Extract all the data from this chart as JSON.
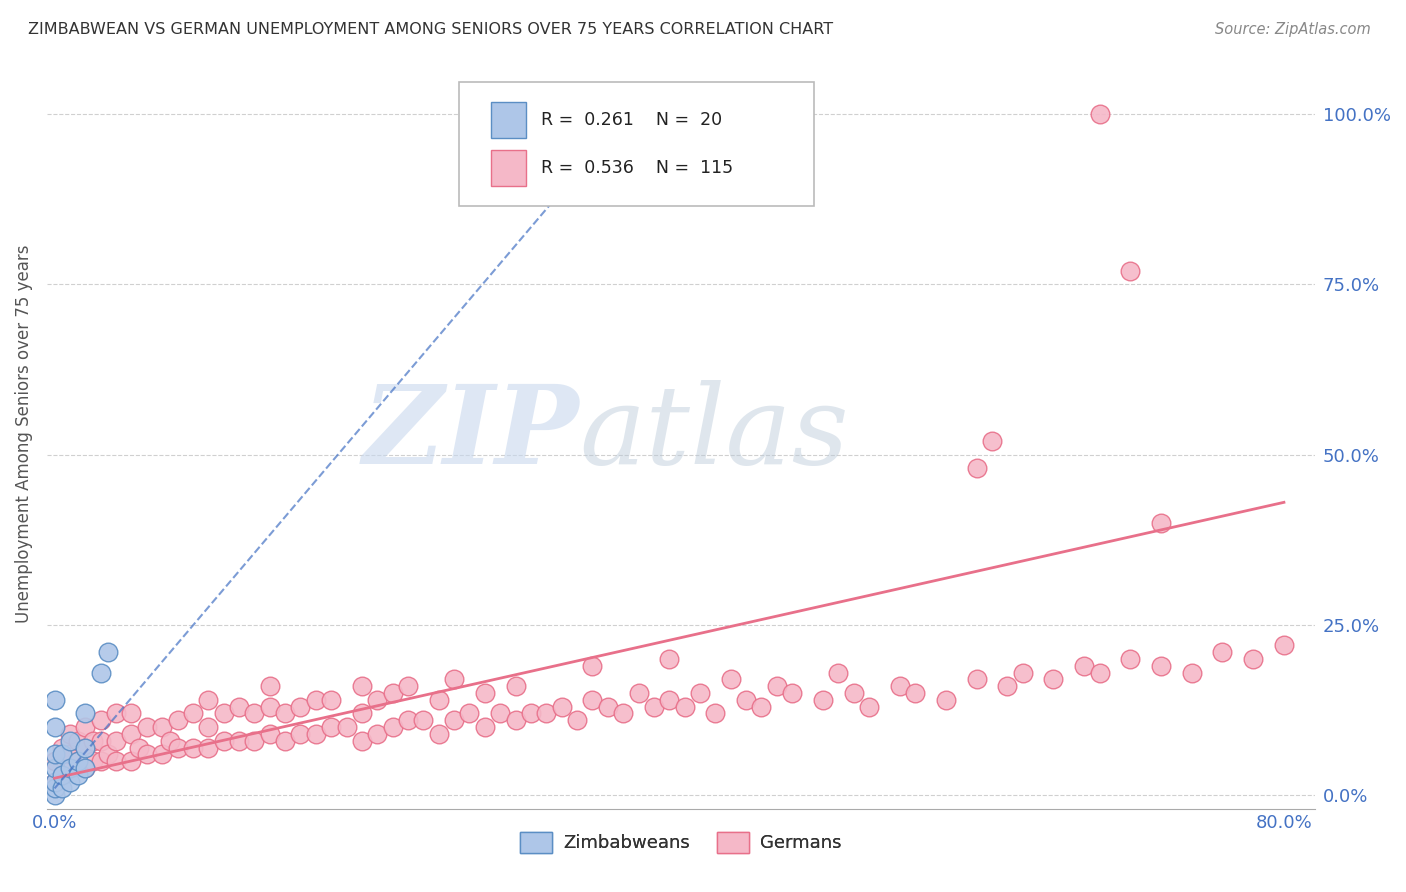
{
  "title": "ZIMBABWEAN VS GERMAN UNEMPLOYMENT AMONG SENIORS OVER 75 YEARS CORRELATION CHART",
  "source": "Source: ZipAtlas.com",
  "ylabel": "Unemployment Among Seniors over 75 years",
  "ytick_labels": [
    "0.0%",
    "25.0%",
    "50.0%",
    "75.0%",
    "100.0%"
  ],
  "ytick_values": [
    0.0,
    0.25,
    0.5,
    0.75,
    1.0
  ],
  "xlim": [
    -0.005,
    0.82
  ],
  "ylim": [
    -0.02,
    1.08
  ],
  "zim_color": "#aec6e8",
  "zim_edge_color": "#5b8ec4",
  "ger_color": "#f5b8c8",
  "ger_edge_color": "#e8708a",
  "zim_r": 0.261,
  "zim_n": 20,
  "ger_r": 0.536,
  "ger_n": 115,
  "zim_trendline_color": "#4472c4",
  "ger_trendline_color": "#e8708a",
  "watermark_zip": "ZIP",
  "watermark_atlas": "atlas",
  "zim_x": [
    0.0,
    0.0,
    0.0,
    0.0,
    0.0,
    0.0,
    0.0,
    0.005,
    0.005,
    0.005,
    0.01,
    0.01,
    0.01,
    0.015,
    0.015,
    0.02,
    0.02,
    0.02,
    0.03,
    0.035
  ],
  "zim_y": [
    0.0,
    0.01,
    0.02,
    0.04,
    0.06,
    0.1,
    0.14,
    0.01,
    0.03,
    0.06,
    0.02,
    0.04,
    0.08,
    0.03,
    0.05,
    0.04,
    0.07,
    0.12,
    0.18,
    0.21
  ],
  "zim_trend_x0": 0.0,
  "zim_trend_x1": 0.38,
  "zim_trend_y0": 0.01,
  "zim_trend_y1": 1.02,
  "ger_trend_x0": 0.0,
  "ger_trend_x1": 0.8,
  "ger_trend_y0": 0.025,
  "ger_trend_y1": 0.43,
  "ger_x": [
    0.0,
    0.0,
    0.005,
    0.005,
    0.01,
    0.01,
    0.01,
    0.015,
    0.015,
    0.02,
    0.02,
    0.02,
    0.025,
    0.025,
    0.03,
    0.03,
    0.03,
    0.035,
    0.04,
    0.04,
    0.04,
    0.05,
    0.05,
    0.05,
    0.055,
    0.06,
    0.06,
    0.07,
    0.07,
    0.075,
    0.08,
    0.08,
    0.09,
    0.09,
    0.1,
    0.1,
    0.1,
    0.11,
    0.11,
    0.12,
    0.12,
    0.13,
    0.13,
    0.14,
    0.14,
    0.14,
    0.15,
    0.15,
    0.16,
    0.16,
    0.17,
    0.17,
    0.18,
    0.18,
    0.19,
    0.2,
    0.2,
    0.2,
    0.21,
    0.21,
    0.22,
    0.22,
    0.23,
    0.23,
    0.24,
    0.25,
    0.25,
    0.26,
    0.26,
    0.27,
    0.28,
    0.28,
    0.29,
    0.3,
    0.3,
    0.31,
    0.32,
    0.33,
    0.34,
    0.35,
    0.35,
    0.36,
    0.37,
    0.38,
    0.39,
    0.4,
    0.4,
    0.41,
    0.42,
    0.43,
    0.44,
    0.45,
    0.46,
    0.47,
    0.48,
    0.5,
    0.51,
    0.52,
    0.53,
    0.55,
    0.56,
    0.58,
    0.6,
    0.62,
    0.63,
    0.65,
    0.67,
    0.68,
    0.7,
    0.72,
    0.74,
    0.76,
    0.78,
    0.8,
    0.6,
    0.61,
    0.72,
    0.68,
    0.7
  ],
  "ger_y": [
    0.02,
    0.05,
    0.03,
    0.07,
    0.04,
    0.06,
    0.09,
    0.05,
    0.08,
    0.04,
    0.07,
    0.1,
    0.05,
    0.08,
    0.05,
    0.08,
    0.11,
    0.06,
    0.05,
    0.08,
    0.12,
    0.05,
    0.09,
    0.12,
    0.07,
    0.06,
    0.1,
    0.06,
    0.1,
    0.08,
    0.07,
    0.11,
    0.07,
    0.12,
    0.07,
    0.1,
    0.14,
    0.08,
    0.12,
    0.08,
    0.13,
    0.08,
    0.12,
    0.09,
    0.13,
    0.16,
    0.08,
    0.12,
    0.09,
    0.13,
    0.09,
    0.14,
    0.1,
    0.14,
    0.1,
    0.08,
    0.12,
    0.16,
    0.09,
    0.14,
    0.1,
    0.15,
    0.11,
    0.16,
    0.11,
    0.09,
    0.14,
    0.11,
    0.17,
    0.12,
    0.1,
    0.15,
    0.12,
    0.11,
    0.16,
    0.12,
    0.12,
    0.13,
    0.11,
    0.14,
    0.19,
    0.13,
    0.12,
    0.15,
    0.13,
    0.14,
    0.2,
    0.13,
    0.15,
    0.12,
    0.17,
    0.14,
    0.13,
    0.16,
    0.15,
    0.14,
    0.18,
    0.15,
    0.13,
    0.16,
    0.15,
    0.14,
    0.17,
    0.16,
    0.18,
    0.17,
    0.19,
    0.18,
    0.2,
    0.19,
    0.18,
    0.21,
    0.2,
    0.22,
    0.48,
    0.52,
    0.4,
    1.0,
    0.77
  ]
}
